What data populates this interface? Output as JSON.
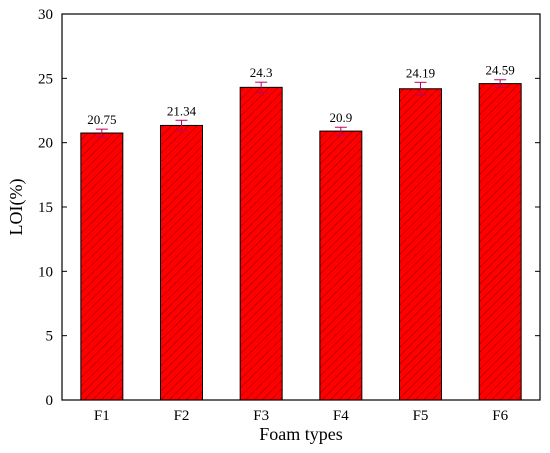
{
  "chart_data": {
    "type": "bar",
    "x_label": "Foam types",
    "y_label": "LOI(%)",
    "categories": [
      "F1",
      "F2",
      "F3",
      "F4",
      "F5",
      "F6"
    ],
    "values": [
      20.75,
      21.34,
      24.3,
      20.9,
      24.19,
      24.59
    ],
    "errors": [
      0.3,
      0.4,
      0.4,
      0.3,
      0.5,
      0.3
    ],
    "color": "#ff0000",
    "ylim": [
      0,
      30
    ],
    "yticks": [
      0,
      5,
      10,
      15,
      20,
      25,
      30
    ]
  }
}
